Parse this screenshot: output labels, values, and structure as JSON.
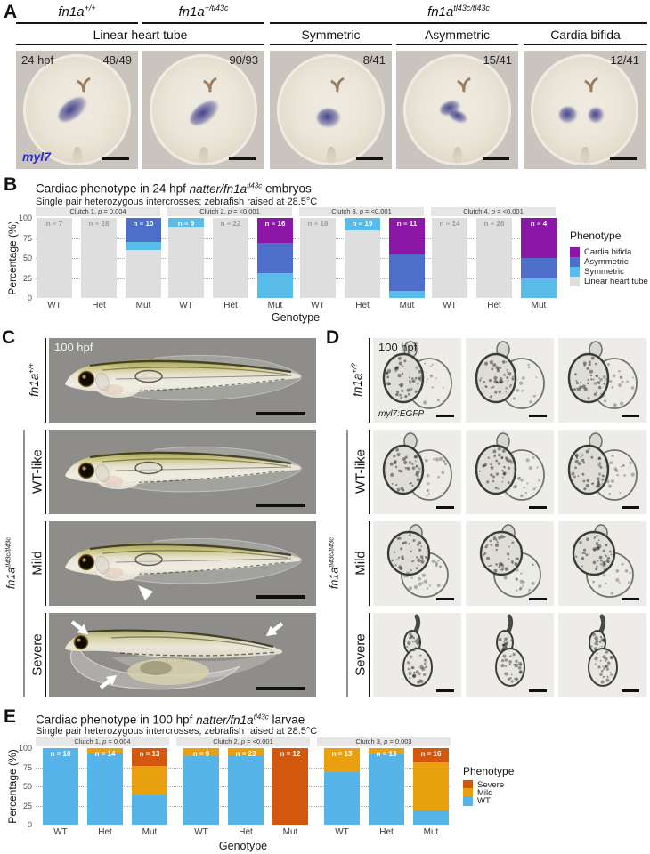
{
  "colors": {
    "bifida": "#8C16A5",
    "asymmetric": "#4D6FC9",
    "symmetric": "#59BCE8",
    "linear": "#DEDEDE",
    "severe": "#D4570E",
    "mild": "#E8A00E",
    "wt": "#56B4E9",
    "marker_blue": "#2C2CCB"
  },
  "panelA": {
    "label": "A",
    "groups": [
      {
        "base": "fn1a",
        "sup": "+/+"
      },
      {
        "base": "fn1a",
        "sup": "+/tl43c"
      },
      {
        "base": "fn1a",
        "sup": "tl43c/tl43c"
      }
    ],
    "categories": [
      "Linear heart tube",
      "Symmetric",
      "Asymmetric",
      "Cardia bifida"
    ],
    "stage": "24 hpf",
    "marker": "myl7",
    "counts": [
      "48/49",
      "90/93",
      "8/41",
      "15/41",
      "12/41"
    ]
  },
  "panelC": {
    "label": "C",
    "stage": "100 hpf",
    "wt_genotype": {
      "base": "fn1a",
      "sup": "+/+"
    },
    "mut_genotype": {
      "base": "fn1a",
      "sup": "tl43c/tl43c"
    },
    "rows": [
      "WT-like",
      "Mild",
      "Severe"
    ]
  },
  "panelD": {
    "label": "D",
    "stage": "100 hpf",
    "het_genotype": {
      "base": "fn1a",
      "sup": "+/?"
    },
    "mut_genotype": {
      "base": "fn1a",
      "sup": "tl43c/tl43c"
    },
    "marker": "myl7:EGFP",
    "rows": [
      "WT-like",
      "Mild",
      "Severe"
    ]
  },
  "chart_data": [
    {
      "panel": "B",
      "type": "stacked_bar_percent",
      "title": {
        "pre": "Cardiac phenotype in 24 hpf ",
        "italic": "natter/fn1a",
        "sup": "tl43c",
        "post": " embryos"
      },
      "subtitle": "Single pair heterozygous intercrosses; zebrafish raised at 28.5°C",
      "ylabel": "Percentage (%)",
      "xlabel": "Genotype",
      "yticks": [
        0,
        25,
        50,
        75,
        100
      ],
      "genotypes": [
        "WT",
        "Het",
        "Mut"
      ],
      "legend_title": "Phenotype",
      "legend": [
        {
          "label": "Cardia bifida",
          "key": "bifida"
        },
        {
          "label": "Asymmetric",
          "key": "asymmetric"
        },
        {
          "label": "Symmetric",
          "key": "symmetric"
        },
        {
          "label": "Linear heart tube",
          "key": "linear"
        }
      ],
      "facets": [
        {
          "strip": "Clutch 1, p = 0.004",
          "bars": [
            {
              "x": "WT",
              "n": 7,
              "segments": [
                [
                  "linear",
                  100
                ]
              ]
            },
            {
              "x": "Het",
              "n": 28,
              "segments": [
                [
                  "linear",
                  100
                ]
              ]
            },
            {
              "x": "Mut",
              "n": 10,
              "segments": [
                [
                  "linear",
                  60
                ],
                [
                  "symmetric",
                  10
                ],
                [
                  "asymmetric",
                  30
                ]
              ]
            }
          ]
        },
        {
          "strip": "Clutch 2, p = <0.001",
          "bars": [
            {
              "x": "WT",
              "n": 9,
              "segments": [
                [
                  "linear",
                  89
                ],
                [
                  "symmetric",
                  11
                ]
              ]
            },
            {
              "x": "Het",
              "n": 22,
              "segments": [
                [
                  "linear",
                  100
                ]
              ]
            },
            {
              "x": "Mut",
              "n": 16,
              "segments": [
                [
                  "symmetric",
                  31
                ],
                [
                  "asymmetric",
                  38
                ],
                [
                  "bifida",
                  31
                ]
              ]
            }
          ]
        },
        {
          "strip": "Clutch 3, p = <0.001",
          "bars": [
            {
              "x": "WT",
              "n": 18,
              "segments": [
                [
                  "linear",
                  100
                ]
              ]
            },
            {
              "x": "Het",
              "n": 19,
              "segments": [
                [
                  "linear",
                  84
                ],
                [
                  "symmetric",
                  16
                ]
              ]
            },
            {
              "x": "Mut",
              "n": 11,
              "segments": [
                [
                  "symmetric",
                  9
                ],
                [
                  "asymmetric",
                  46
                ],
                [
                  "bifida",
                  45
                ]
              ]
            }
          ]
        },
        {
          "strip": "Clutch 4, p = <0.001",
          "bars": [
            {
              "x": "WT",
              "n": 14,
              "segments": [
                [
                  "linear",
                  100
                ]
              ]
            },
            {
              "x": "Het",
              "n": 26,
              "segments": [
                [
                  "linear",
                  100
                ]
              ]
            },
            {
              "x": "Mut",
              "n": 4,
              "segments": [
                [
                  "symmetric",
                  25
                ],
                [
                  "asymmetric",
                  25
                ],
                [
                  "bifida",
                  50
                ]
              ]
            }
          ]
        }
      ]
    },
    {
      "panel": "E",
      "type": "stacked_bar_percent",
      "title": {
        "pre": "Cardiac phenotype in 100 hpf ",
        "italic": "natter/fn1a",
        "sup": "tl43c",
        "post": " larvae"
      },
      "subtitle": "Single pair heterozygous intercrosses; zebrafish raised at 28.5°C",
      "ylabel": "Percentage (%)",
      "xlabel": "Genotype",
      "yticks": [
        0,
        25,
        50,
        75,
        100
      ],
      "genotypes": [
        "WT",
        "Het",
        "Mut"
      ],
      "legend_title": "Phenotype",
      "legend": [
        {
          "label": "Severe",
          "key": "severe"
        },
        {
          "label": "Mild",
          "key": "mild"
        },
        {
          "label": "WT",
          "key": "wt"
        }
      ],
      "facets": [
        {
          "strip": "Clutch 1, p = 0.004",
          "bars": [
            {
              "x": "WT",
              "n": 10,
              "segments": [
                [
                  "wt",
                  100
                ]
              ]
            },
            {
              "x": "Het",
              "n": 14,
              "segments": [
                [
                  "wt",
                  93
                ],
                [
                  "mild",
                  7
                ]
              ]
            },
            {
              "x": "Mut",
              "n": 13,
              "segments": [
                [
                  "wt",
                  38
                ],
                [
                  "mild",
                  39
                ],
                [
                  "severe",
                  23
                ]
              ]
            }
          ]
        },
        {
          "strip": "Clutch 2, p = <0.001",
          "bars": [
            {
              "x": "WT",
              "n": 9,
              "segments": [
                [
                  "wt",
                  89
                ],
                [
                  "mild",
                  11
                ]
              ]
            },
            {
              "x": "Het",
              "n": 23,
              "segments": [
                [
                  "wt",
                  91
                ],
                [
                  "mild",
                  9
                ]
              ]
            },
            {
              "x": "Mut",
              "n": 12,
              "segments": [
                [
                  "severe",
                  100
                ]
              ]
            }
          ]
        },
        {
          "strip": "Clutch 3, p = 0.003",
          "bars": [
            {
              "x": "WT",
              "n": 13,
              "segments": [
                [
                  "wt",
                  69
                ],
                [
                  "mild",
                  31
                ]
              ]
            },
            {
              "x": "Het",
              "n": 13,
              "segments": [
                [
                  "wt",
                  92
                ],
                [
                  "mild",
                  8
                ]
              ]
            },
            {
              "x": "Mut",
              "n": 16,
              "segments": [
                [
                  "wt",
                  19
                ],
                [
                  "mild",
                  62
                ],
                [
                  "severe",
                  19
                ]
              ]
            }
          ]
        }
      ]
    }
  ]
}
